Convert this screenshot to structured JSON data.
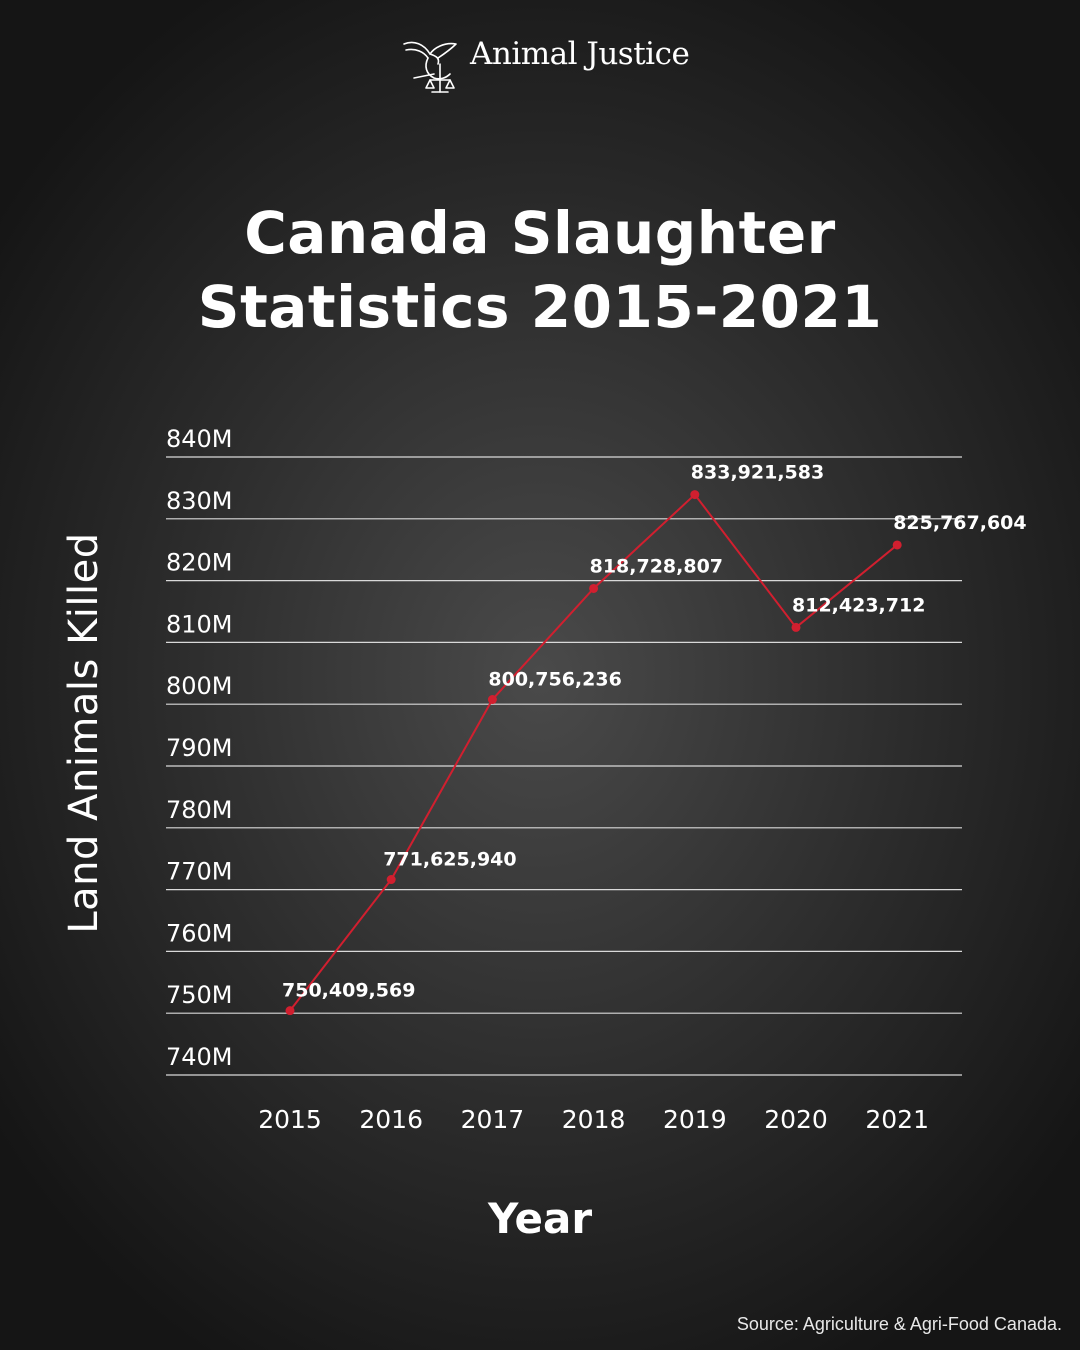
{
  "brand": {
    "name": "Animal Justice",
    "logo_icon": "dove-scales-icon"
  },
  "source": "Source: Agriculture & Agri-Food Canada.",
  "colors": {
    "line": "#d11f2f",
    "grid": "#d9d9d9",
    "text": "#ffffff"
  },
  "chart_data": {
    "type": "line",
    "title": [
      "Canada Slaughter",
      "Statistics 2015-2021"
    ],
    "xlabel": "Year",
    "ylabel": "Land Animals Killed",
    "categories": [
      "2015",
      "2016",
      "2017",
      "2018",
      "2019",
      "2020",
      "2021"
    ],
    "series": [
      {
        "values": [
          750409569,
          771625940,
          800756236,
          818728807,
          833921583,
          812423712,
          825767604
        ],
        "labels": [
          "750,409,569",
          "771,625,940",
          "800,756,236",
          "818,728,807",
          "833,921,583",
          "812,423,712",
          "825,767,604"
        ]
      }
    ],
    "ylim": [
      740000000,
      840000000
    ],
    "yticks": [
      740000000,
      750000000,
      760000000,
      770000000,
      780000000,
      790000000,
      800000000,
      810000000,
      820000000,
      830000000,
      840000000
    ],
    "ytick_labels": [
      "740M",
      "750M",
      "760M",
      "770M",
      "780M",
      "790M",
      "800M",
      "810M",
      "820M",
      "830M",
      "840M"
    ],
    "grid": true,
    "legend": "none"
  }
}
